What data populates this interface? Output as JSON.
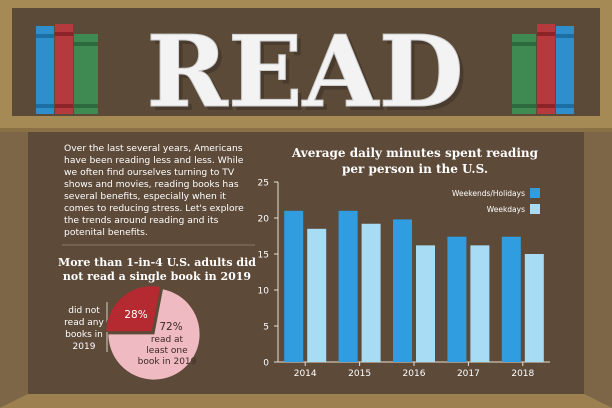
{
  "header": {
    "title": "READ"
  },
  "intro": {
    "lines": [
      "Over the last several years, Americans",
      "have been reading less and less. While",
      "we often find ourselves turning to TV",
      "shows and movies, reading books has",
      "several benefits, especially when it",
      "comes to reducing stress. Let's explore",
      "the trends around reading and its",
      "potenital benefits."
    ]
  },
  "pie_section": {
    "title_lines": [
      "More than 1-in-4 U.S. adults did",
      "not read a single book in 2019"
    ],
    "left_label_lines": [
      "did not",
      "read any",
      "books in",
      "2019"
    ],
    "right_label_lines": [
      "read at",
      "least one",
      "book in 2019"
    ]
  },
  "colors": {
    "wood_frame": "#a58a55",
    "shelf_back": "#5d4a39",
    "weekend_blue": "#2f9de0",
    "weekday_blue": "#a8dcf4",
    "pie_dark": "#b42a30",
    "pie_light": "#f0bac3"
  },
  "chart_data": [
    {
      "type": "bar",
      "title": "Average daily minutes spent reading per person in the U.S.",
      "title_lines": [
        "Average daily minutes spent reading",
        "per person in the U.S."
      ],
      "categories": [
        "2014",
        "2015",
        "2016",
        "2017",
        "2018"
      ],
      "series": [
        {
          "name": "Weekends/Holidays",
          "values": [
            21,
            21,
            19.8,
            17.4,
            17.4
          ],
          "color": "#2f9de0"
        },
        {
          "name": "Weekdays",
          "values": [
            18.5,
            19.2,
            16.2,
            16.2,
            15
          ],
          "color": "#a8dcf4"
        }
      ],
      "xlabel": "",
      "ylabel": "",
      "ylim": [
        0,
        25
      ],
      "yticks": [
        0,
        5,
        10,
        15,
        20,
        25
      ],
      "grid": false,
      "legend": "top-right"
    },
    {
      "type": "pie",
      "labels": [
        "did not read any books in 2019",
        "read at least one book in 2019"
      ],
      "values": [
        28,
        72
      ],
      "value_labels": [
        "28%",
        "72%"
      ],
      "colors": [
        "#b42a30",
        "#f0bac3"
      ]
    }
  ]
}
